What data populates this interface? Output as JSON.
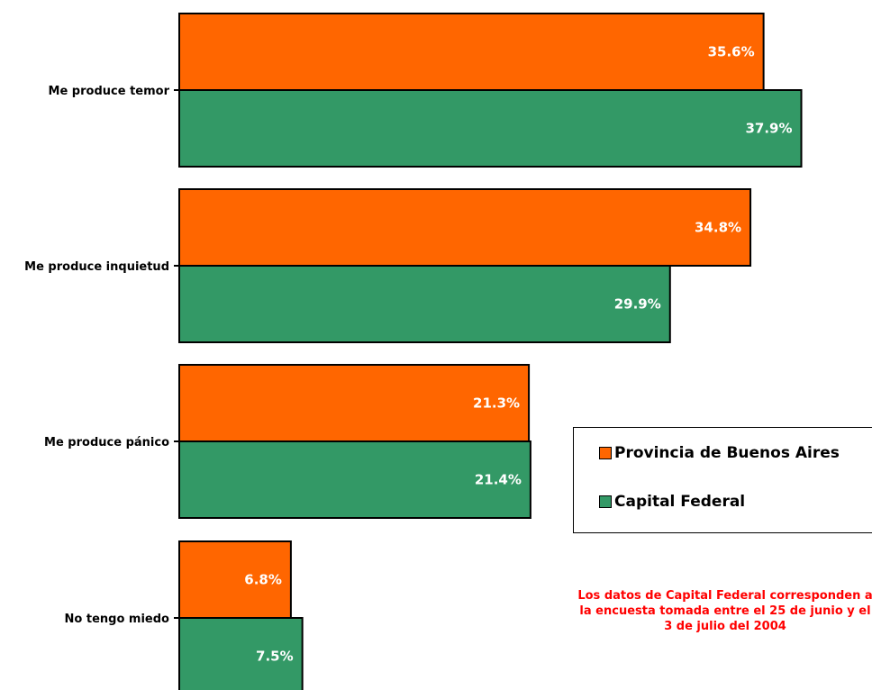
{
  "chart_data": {
    "type": "bar",
    "orientation": "horizontal",
    "categories": [
      "Me produce temor",
      "Me produce inquietud",
      "Me produce pánico",
      "No tengo miedo"
    ],
    "series": [
      {
        "name": "Provincia de Buenos Aires",
        "color": "#ff6600",
        "values": [
          35.6,
          34.8,
          21.3,
          6.8
        ],
        "labels": [
          "35.6%",
          "34.8%",
          "21.3%",
          "6.8%"
        ]
      },
      {
        "name": "Capital Federal",
        "color": "#339966",
        "values": [
          37.9,
          29.9,
          21.4,
          7.5
        ],
        "labels": [
          "37.9%",
          "29.9%",
          "21.4%",
          "7.5%"
        ]
      }
    ],
    "title": "",
    "xlabel": "",
    "ylabel": "",
    "grid": false,
    "legend_position": "right"
  },
  "note": {
    "text": "Los datos de Capital Federal corresponden a la encuesta tomada entre el 25 de junio y el 3 de julio del 2004",
    "color": "#ff0000"
  }
}
